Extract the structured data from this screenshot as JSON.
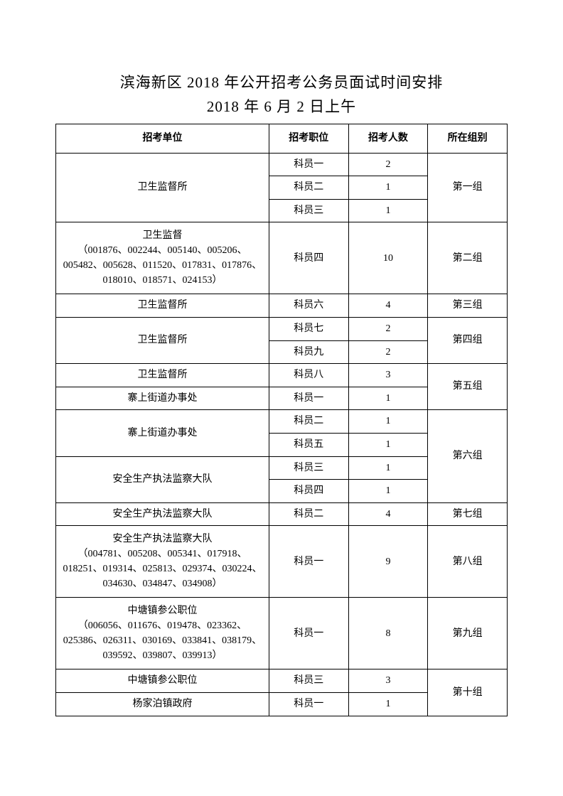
{
  "title": "滨海新区 2018 年公开招考公务员面试时间安排",
  "subtitle": "2018 年 6 月 2 日上午",
  "headers": {
    "unit": "招考单位",
    "position": "招考职位",
    "count": "招考人数",
    "group": "所在组别"
  },
  "units": {
    "u1": "卫生监督所",
    "u2_l1": "卫生监督",
    "u2_l2": "（001876、002244、005140、005206、005482、005628、011520、017831、017876、018010、018571、024153）",
    "u3": "卫生监督所",
    "u4": "卫生监督所",
    "u5a": "卫生监督所",
    "u5b": "寨上街道办事处",
    "u6a": "寨上街道办事处",
    "u6b": "安全生产执法监察大队",
    "u7": "安全生产执法监察大队",
    "u8_l1": "安全生产执法监察大队",
    "u8_l2": "（004781、005208、005341、017918、018251、019314、025813、029374、030224、034630、034847、034908）",
    "u9_l1": "中塘镇参公职位",
    "u9_l2": "（006056、011676、019478、023362、025386、026311、030169、033841、038179、039592、039807、039913）",
    "u10a": "中塘镇参公职位",
    "u10b": "杨家泊镇政府"
  },
  "positions": {
    "p1a": "科员一",
    "p1b": "科员二",
    "p1c": "科员三",
    "p2": "科员四",
    "p3": "科员六",
    "p4a": "科员七",
    "p4b": "科员九",
    "p5a": "科员八",
    "p5b": "科员一",
    "p6a": "科员二",
    "p6b": "科员五",
    "p6c": "科员三",
    "p6d": "科员四",
    "p7": "科员二",
    "p8": "科员一",
    "p9": "科员一",
    "p10a": "科员三",
    "p10b": "科员一"
  },
  "counts": {
    "c1a": "2",
    "c1b": "1",
    "c1c": "1",
    "c2": "10",
    "c3": "4",
    "c4a": "2",
    "c4b": "2",
    "c5a": "3",
    "c5b": "1",
    "c6a": "1",
    "c6b": "1",
    "c6c": "1",
    "c6d": "1",
    "c7": "4",
    "c8": "9",
    "c9": "8",
    "c10a": "3",
    "c10b": "1"
  },
  "groups": {
    "g1": "第一组",
    "g2": "第二组",
    "g3": "第三组",
    "g4": "第四组",
    "g5": "第五组",
    "g6": "第六组",
    "g7": "第七组",
    "g8": "第八组",
    "g9": "第九组",
    "g10": "第十组"
  }
}
